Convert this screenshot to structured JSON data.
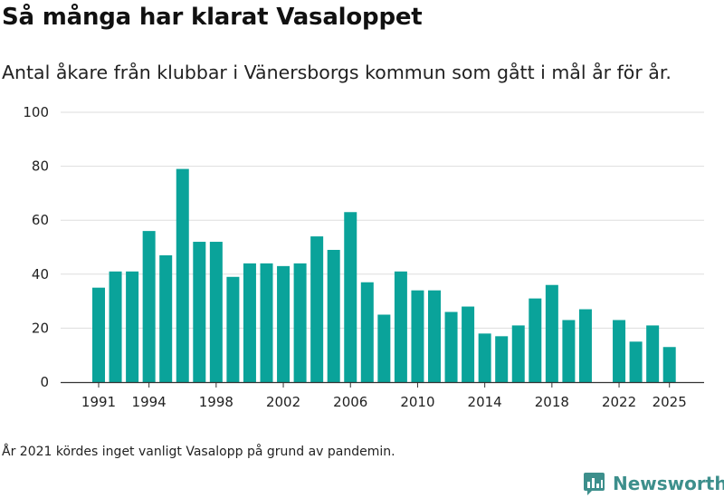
{
  "header": {
    "title": "Så många har klarat Vasaloppet",
    "subtitle": "Antal åkare från klubbar i Vänersborgs kommun som gått i mål år för år."
  },
  "footnote": "År 2021 kördes inget vanligt Vasalopp på grund av pandemin.",
  "brand": {
    "name": "Newsworthy",
    "color": "#3d8f8c"
  },
  "colors": {
    "bar": "#0aa39a",
    "grid": "#dddddd",
    "axis": "#333333"
  },
  "chart_data": {
    "type": "bar",
    "title": "Så många har klarat Vasaloppet",
    "subtitle": "Antal åkare från klubbar i Vänersborgs kommun som gått i mål år för år.",
    "xlabel": "",
    "ylabel": "",
    "ylim": [
      0,
      100
    ],
    "yticks": [
      0,
      20,
      40,
      60,
      80,
      100
    ],
    "xtick_labels": [
      "1991",
      "1994",
      "1998",
      "2002",
      "2006",
      "2010",
      "2014",
      "2018",
      "2022",
      "2025"
    ],
    "grid": true,
    "categories": [
      1991,
      1992,
      1993,
      1994,
      1995,
      1996,
      1997,
      1998,
      1999,
      2000,
      2001,
      2002,
      2003,
      2004,
      2005,
      2006,
      2007,
      2008,
      2009,
      2010,
      2011,
      2012,
      2013,
      2014,
      2015,
      2016,
      2017,
      2018,
      2019,
      2020,
      2021,
      2022,
      2023,
      2024,
      2025
    ],
    "values": [
      35,
      41,
      41,
      56,
      47,
      79,
      52,
      52,
      39,
      44,
      44,
      43,
      44,
      54,
      49,
      63,
      37,
      25,
      41,
      34,
      34,
      26,
      28,
      18,
      17,
      21,
      31,
      36,
      23,
      27,
      null,
      23,
      15,
      21,
      13
    ]
  }
}
